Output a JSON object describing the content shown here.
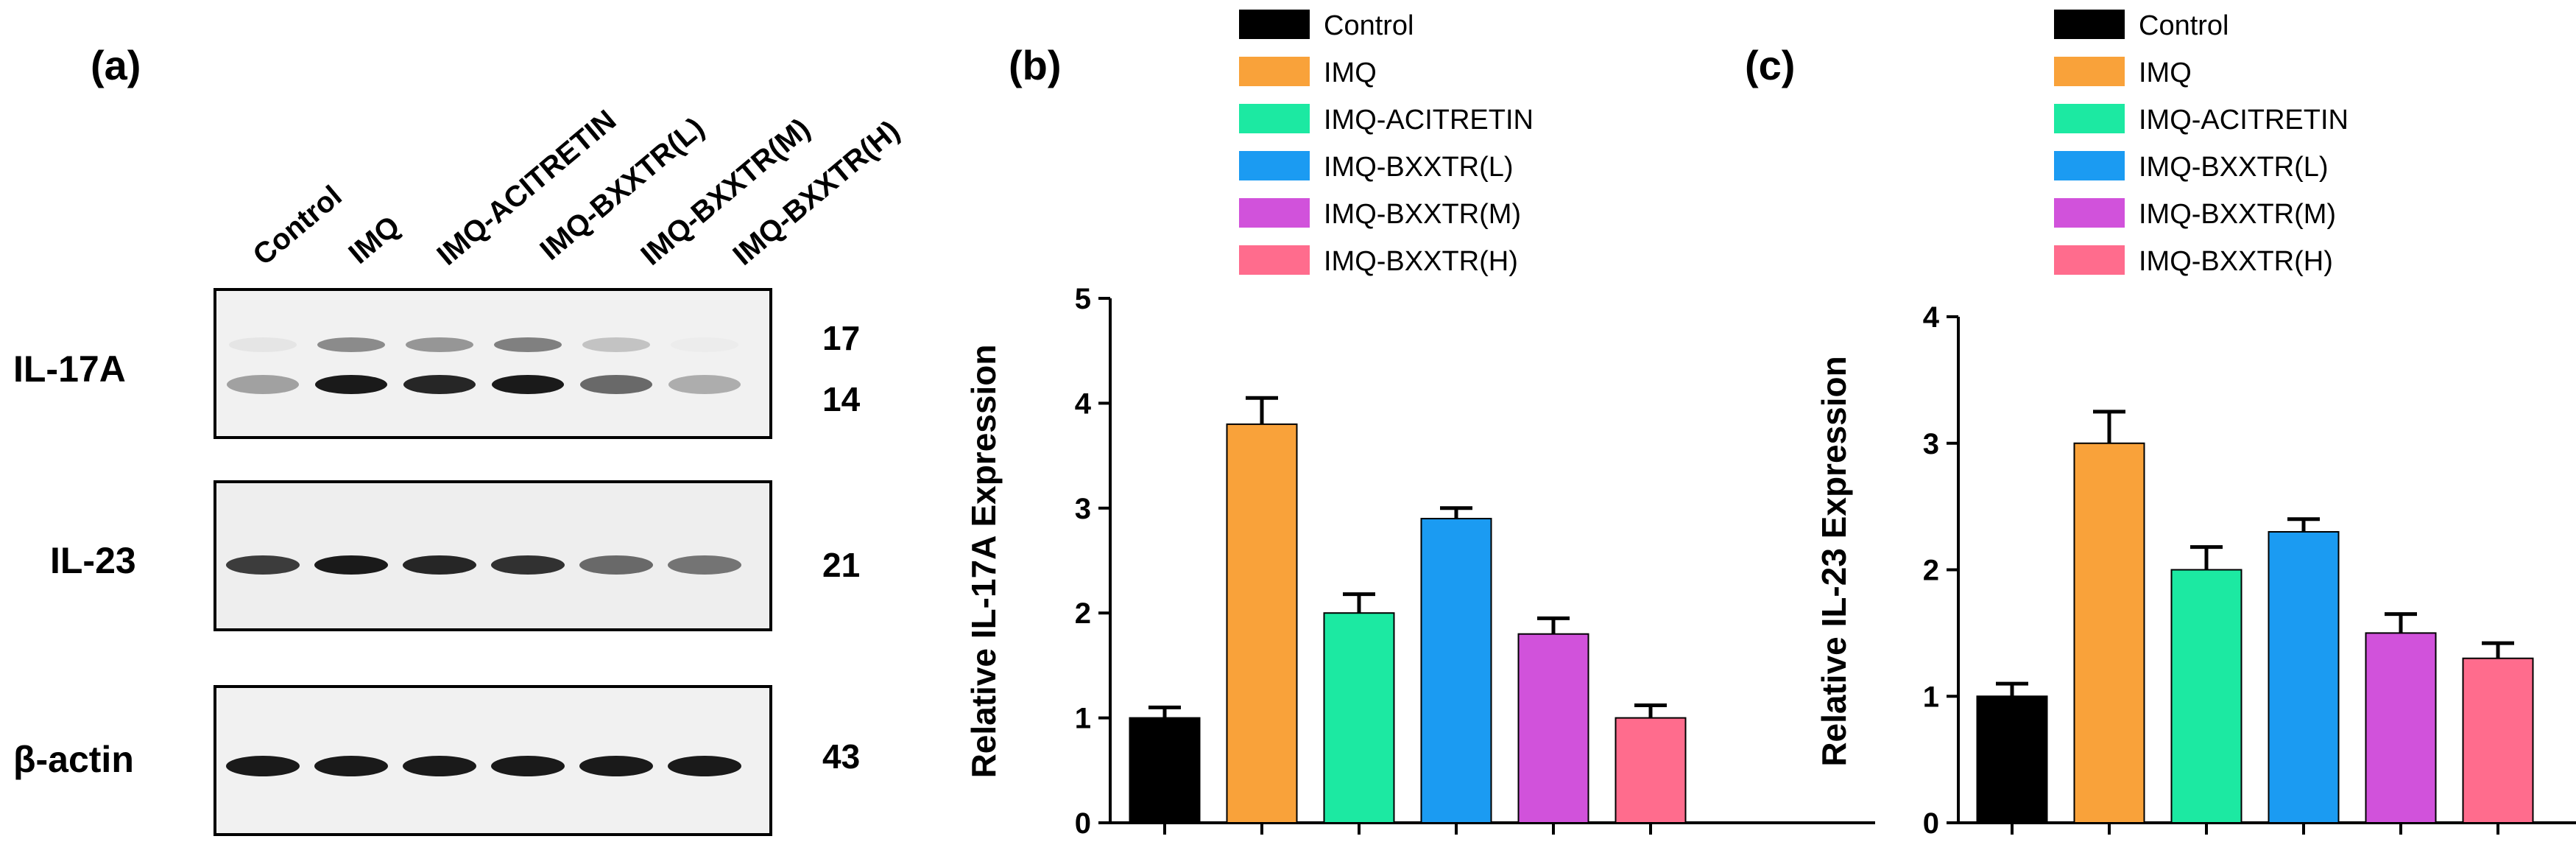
{
  "panel_a": {
    "panel_label": "(a)",
    "lanes": [
      "Control",
      "IMQ",
      "IMQ-ACITRETIN",
      "IMQ-BXXTR(L)",
      "IMQ-BXXTR(M)",
      "IMQ-BXXTR(H)"
    ],
    "blots": [
      {
        "label": "IL-17A",
        "markers": [
          "17",
          "14"
        ]
      },
      {
        "label": "IL-23",
        "markers": [
          "21"
        ]
      },
      {
        "label": "β-actin",
        "markers": [
          "43"
        ]
      }
    ],
    "band_intensity": {
      "il17a_upper": [
        0.05,
        0.45,
        0.4,
        0.5,
        0.2,
        0.02
      ],
      "il17a_lower": [
        0.35,
        0.95,
        0.9,
        0.95,
        0.6,
        0.3
      ],
      "il23": [
        0.8,
        0.95,
        0.9,
        0.85,
        0.6,
        0.55
      ],
      "actin": [
        0.95,
        0.95,
        0.95,
        0.95,
        0.95,
        0.95
      ]
    }
  },
  "chart_data": [
    {
      "type": "bar",
      "panel_label": "(b)",
      "categories": [
        "Control",
        "IMQ",
        "IMQ-ACITRETIN",
        "IMQ-BXXTR(L)",
        "IMQ-BXXTR(M)",
        "IMQ-BXXTR(H)"
      ],
      "values": [
        1.0,
        3.8,
        2.0,
        2.9,
        1.8,
        1.0
      ],
      "errors": [
        0.1,
        0.25,
        0.18,
        0.1,
        0.15,
        0.12
      ],
      "ylabel": "Relative IL-17A Expression",
      "ylim": [
        0,
        5
      ],
      "yticks": [
        "0",
        "1",
        "2",
        "3",
        "4",
        "5"
      ],
      "legend": [
        "Control",
        "IMQ",
        "IMQ-ACITRETIN",
        "IMQ-BXXTR(L)",
        "IMQ-BXXTR(M)",
        "IMQ-BXXTR(H)"
      ],
      "legend_position": "top",
      "grid": false
    },
    {
      "type": "bar",
      "panel_label": "(c)",
      "categories": [
        "Control",
        "IMQ",
        "IMQ-ACITRETIN",
        "IMQ-BXXTR(L)",
        "IMQ-BXXTR(M)",
        "IMQ-BXXTR(H)"
      ],
      "values": [
        1.0,
        3.0,
        2.0,
        2.3,
        1.5,
        1.3
      ],
      "errors": [
        0.1,
        0.25,
        0.18,
        0.1,
        0.15,
        0.12
      ],
      "ylabel": "Relative IL-23 Expression",
      "ylim": [
        0,
        4
      ],
      "yticks": [
        "0",
        "1",
        "2",
        "3",
        "4"
      ],
      "legend": [
        "Control",
        "IMQ",
        "IMQ-ACITRETIN",
        "IMQ-BXXTR(L)",
        "IMQ-BXXTR(M)",
        "IMQ-BXXTR(H)"
      ],
      "legend_position": "top",
      "grid": false
    }
  ],
  "colors": [
    "#000000",
    "#F9A23A",
    "#1CE9A2",
    "#1B9BF2",
    "#D152DB",
    "#FF6C8D"
  ]
}
